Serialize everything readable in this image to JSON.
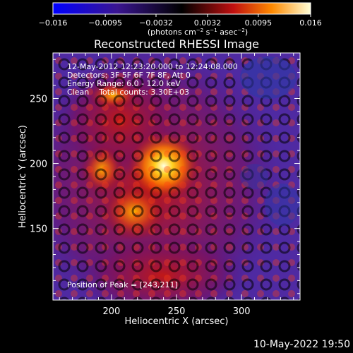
{
  "colorbar": {
    "ticks": [
      "−0.016",
      "−0.0095",
      "−0.0032",
      "0.0032",
      "0.0095",
      "0.016"
    ],
    "units_main": "(photons cm",
    "units_sup1": "−2",
    "units_mid": " s",
    "units_sup2": "−1",
    "units_end": " asec",
    "units_sup3": "−2",
    "units_close": ")"
  },
  "chart_data": {
    "type": "heatmap",
    "title": "Reconstructed RHESSI Image",
    "xlabel": "Heliocentric X (arcsec)",
    "ylabel": "Heliocentric Y (arcsec)",
    "xlim": [
      155,
      345
    ],
    "ylim": [
      95,
      285
    ],
    "xticks": [
      200,
      250,
      300
    ],
    "yticks": [
      150,
      200,
      250
    ],
    "colorbar_range": [
      -0.016,
      0.016
    ],
    "colormap": "blue-purple-red-yellow-white",
    "peak_position": [
      243,
      211
    ],
    "annotations": {
      "time": "12-May-2012 12:23:20.000 to 12:24:08.000",
      "detectors": "Detectors: 3F 5F 6F 7F 8F, Att 0",
      "energy": "Energy Range: 6.0 - 12.0 keV",
      "clean": "Clean    Total counts: 3.30E+03",
      "peak": "Position of Peak = [243,211]"
    }
  },
  "footer": {
    "timestamp": "10-May-2022 19:50"
  }
}
